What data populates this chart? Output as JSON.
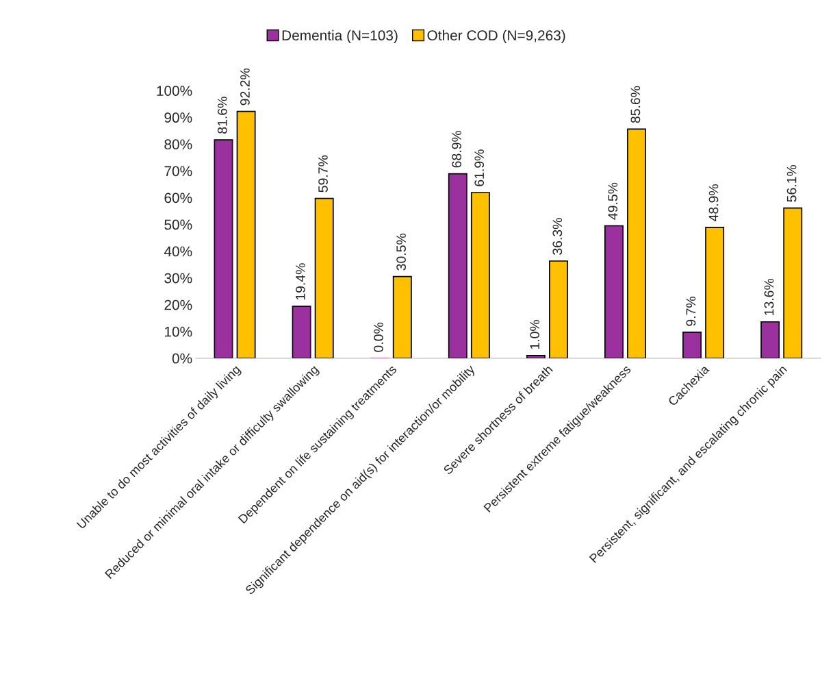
{
  "chart_data": {
    "type": "bar",
    "categories": [
      "Unable to do most activities of daily living",
      "Reduced or minimal oral intake or difficulty swallowing",
      "Dependent on life sustaining treatments",
      "Significant dependence on aid(s) for interaction/or mobility",
      "Severe shortness of breath",
      "Persistent extreme fatigue/weakness",
      "Cachexia",
      "Persistent, significant, and escalating chronic pain"
    ],
    "series": [
      {
        "name": "Dementia (N=103)",
        "color": "#9b309f",
        "values": [
          81.6,
          19.4,
          0.0,
          68.9,
          1.0,
          49.5,
          9.7,
          13.6
        ],
        "value_labels": [
          "81.6%",
          "19.4%",
          "0.0%",
          "68.9%",
          "1.0%",
          "49.5%",
          "9.7%",
          "13.6%"
        ]
      },
      {
        "name": "Other COD (N=9,263)",
        "color": "#ffc000",
        "values": [
          92.2,
          59.7,
          30.5,
          61.9,
          36.3,
          85.6,
          48.9,
          56.1
        ],
        "value_labels": [
          "92.2%",
          "59.7%",
          "30.5%",
          "61.9%",
          "36.3%",
          "85.6%",
          "48.9%",
          "56.1%"
        ]
      }
    ],
    "ylim": [
      0,
      100
    ],
    "yticks": [
      {
        "value": 0,
        "label": "0%"
      },
      {
        "value": 10,
        "label": "10%"
      },
      {
        "value": 20,
        "label": "20%"
      },
      {
        "value": 30,
        "label": "30%"
      },
      {
        "value": 40,
        "label": "40%"
      },
      {
        "value": 50,
        "label": "50%"
      },
      {
        "value": 60,
        "label": "60%"
      },
      {
        "value": 70,
        "label": "70%"
      },
      {
        "value": 80,
        "label": "80%"
      },
      {
        "value": 90,
        "label": "90%"
      },
      {
        "value": 100,
        "label": "100%"
      }
    ],
    "grid": false,
    "legend": "top"
  }
}
